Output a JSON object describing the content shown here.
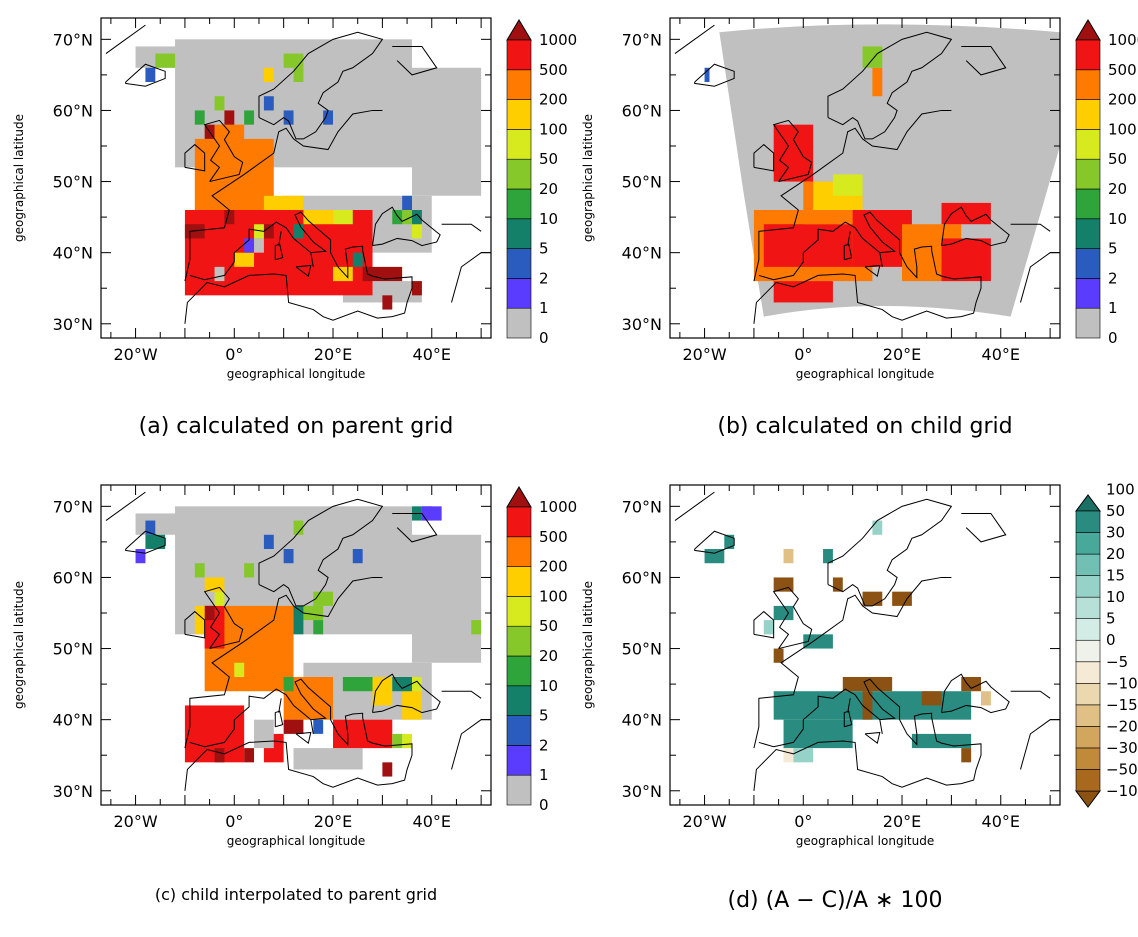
{
  "chart_data": [
    {
      "id": "a",
      "type": "heatmap",
      "caption": "(a) calculated on parent grid",
      "xlabel": "geographical longitude",
      "ylabel": "geographical latitude",
      "x_ticks": [
        "20°W",
        "0°",
        "20°E",
        "40°E"
      ],
      "y_ticks": [
        "30°N",
        "40°N",
        "50°N",
        "60°N",
        "70°N"
      ],
      "xlim": [
        -27,
        52
      ],
      "ylim": [
        28,
        73
      ],
      "colorbar": {
        "labels": [
          "0",
          "1",
          "2",
          "5",
          "10",
          "20",
          "50",
          "100",
          "200",
          "500",
          "1000"
        ],
        "colors": [
          "#c0c0c0",
          "#5a3cff",
          "#2a5cc0",
          "#14806a",
          "#2ea43a",
          "#86c82a",
          "#d7ea1e",
          "#ffce00",
          "#ff7a00",
          "#f01414",
          "#a01010"
        ]
      },
      "cells": [
        [
          "#c0c0c0",
          -12,
          52,
          48,
          18
        ],
        [
          "#c0c0c0",
          -20,
          66,
          10,
          3
        ],
        [
          "#c0c0c0",
          36,
          48,
          14,
          18
        ],
        [
          "#c0c0c0",
          10,
          40,
          30,
          8
        ],
        [
          "#c0c0c0",
          22,
          33,
          16,
          3
        ],
        [
          "#f01414",
          -10,
          34,
          38,
          12
        ],
        [
          "#ff7a00",
          -8,
          46,
          16,
          10
        ],
        [
          "#ff7a00",
          -4,
          52,
          6,
          6
        ],
        [
          "#a01010",
          -6,
          56,
          2,
          2
        ],
        [
          "#a01010",
          -2,
          58,
          2,
          2
        ],
        [
          "#a01010",
          -10,
          42,
          4,
          2
        ],
        [
          "#a01010",
          -2,
          44,
          2,
          2
        ],
        [
          "#a01010",
          4,
          42,
          4,
          2
        ],
        [
          "#a01010",
          26,
          36,
          8,
          2
        ],
        [
          "#a01010",
          36,
          34,
          2,
          2
        ],
        [
          "#a01010",
          30,
          32,
          2,
          2
        ],
        [
          "#a01010",
          0,
          38,
          2,
          2
        ],
        [
          "#a01010",
          14,
          44,
          2,
          2
        ],
        [
          "#ffce00",
          6,
          46,
          8,
          2
        ],
        [
          "#ffce00",
          14,
          44,
          6,
          2
        ],
        [
          "#ffce00",
          0,
          38,
          4,
          2
        ],
        [
          "#ffce00",
          6,
          64,
          2,
          2
        ],
        [
          "#ffce00",
          20,
          36,
          4,
          2
        ],
        [
          "#d7ea1e",
          4,
          42,
          2,
          2
        ],
        [
          "#d7ea1e",
          20,
          44,
          4,
          2
        ],
        [
          "#d7ea1e",
          36,
          42,
          2,
          2
        ],
        [
          "#86c82a",
          -16,
          66,
          4,
          2
        ],
        [
          "#86c82a",
          10,
          66,
          4,
          2
        ],
        [
          "#86c82a",
          -4,
          60,
          2,
          2
        ],
        [
          "#86c82a",
          12,
          64,
          2,
          2
        ],
        [
          "#86c82a",
          34,
          44,
          2,
          2
        ],
        [
          "#2ea43a",
          -8,
          58,
          2,
          2
        ],
        [
          "#2ea43a",
          2,
          58,
          2,
          2
        ],
        [
          "#2ea43a",
          32,
          44,
          2,
          2
        ],
        [
          "#14806a",
          12,
          42,
          2,
          2
        ],
        [
          "#14806a",
          36,
          44,
          2,
          2
        ],
        [
          "#14806a",
          24,
          38,
          2,
          2
        ],
        [
          "#2a5cc0",
          -18,
          64,
          2,
          2
        ],
        [
          "#2a5cc0",
          6,
          60,
          2,
          2
        ],
        [
          "#2a5cc0",
          10,
          58,
          2,
          2
        ],
        [
          "#2a5cc0",
          18,
          58,
          2,
          2
        ],
        [
          "#2a5cc0",
          34,
          46,
          2,
          2
        ],
        [
          "#5a3cff",
          2,
          40,
          2,
          2
        ],
        [
          "#c0c0c0",
          4,
          40,
          2,
          2
        ],
        [
          "#c0c0c0",
          -4,
          36,
          2,
          2
        ]
      ]
    },
    {
      "id": "b",
      "type": "heatmap",
      "caption": "(b) calculated on child grid",
      "xlabel": "geographical longitude",
      "ylabel": "geographical latitude",
      "x_ticks": [
        "20°W",
        "0°",
        "20°E",
        "40°E"
      ],
      "y_ticks": [
        "30°N",
        "40°N",
        "50°N",
        "60°N",
        "70°N"
      ],
      "xlim": [
        -27,
        52
      ],
      "ylim": [
        28,
        73
      ],
      "colorbar": {
        "labels": [
          "0",
          "1",
          "2",
          "5",
          "10",
          "20",
          "50",
          "100",
          "200",
          "500",
          "1000"
        ],
        "colors": [
          "#c0c0c0",
          "#5a3cff",
          "#2a5cc0",
          "#14806a",
          "#2ea43a",
          "#86c82a",
          "#d7ea1e",
          "#ffce00",
          "#ff7a00",
          "#f01414",
          "#a01010"
        ]
      },
      "cells": [
        [
          "#ff7a00",
          -10,
          36,
          24,
          10
        ],
        [
          "#f01414",
          -8,
          38,
          18,
          6
        ],
        [
          "#f01414",
          -6,
          50,
          8,
          8
        ],
        [
          "#ff7a00",
          0,
          44,
          10,
          6
        ],
        [
          "#f01414",
          10,
          38,
          12,
          8
        ],
        [
          "#ff7a00",
          20,
          36,
          12,
          8
        ],
        [
          "#f01414",
          28,
          36,
          10,
          6
        ],
        [
          "#f01414",
          -6,
          33,
          12,
          3
        ],
        [
          "#ffce00",
          2,
          46,
          10,
          4
        ],
        [
          "#d7ea1e",
          6,
          48,
          6,
          3
        ],
        [
          "#ff7a00",
          14,
          62,
          2,
          4
        ],
        [
          "#86c82a",
          12,
          66,
          4,
          3
        ],
        [
          "#2a5cc0",
          -20,
          64,
          1,
          2
        ],
        [
          "#f01414",
          28,
          44,
          10,
          3
        ],
        [
          "#ff7a00",
          22,
          40,
          6,
          3
        ]
      ]
    },
    {
      "id": "c",
      "type": "heatmap",
      "caption": "(c) child interpolated to parent grid",
      "xlabel": "geographical longitude",
      "ylabel": "geographical latitude",
      "x_ticks": [
        "20°W",
        "0°",
        "20°E",
        "40°E"
      ],
      "y_ticks": [
        "30°N",
        "40°N",
        "50°N",
        "60°N",
        "70°N"
      ],
      "xlim": [
        -27,
        52
      ],
      "ylim": [
        28,
        73
      ],
      "colorbar": {
        "labels": [
          "0",
          "1",
          "2",
          "5",
          "10",
          "20",
          "50",
          "100",
          "200",
          "500",
          "1000"
        ],
        "colors": [
          "#c0c0c0",
          "#5a3cff",
          "#2a5cc0",
          "#14806a",
          "#2ea43a",
          "#86c82a",
          "#d7ea1e",
          "#ffce00",
          "#ff7a00",
          "#f01414",
          "#a01010"
        ]
      },
      "cells": [
        [
          "#c0c0c0",
          -12,
          52,
          48,
          18
        ],
        [
          "#c0c0c0",
          -20,
          66,
          10,
          3
        ],
        [
          "#c0c0c0",
          36,
          48,
          14,
          18
        ],
        [
          "#c0c0c0",
          14,
          40,
          26,
          8
        ],
        [
          "#c0c0c0",
          12,
          33,
          14,
          3
        ],
        [
          "#ff7a00",
          -6,
          44,
          18,
          12
        ],
        [
          "#ff7a00",
          10,
          40,
          10,
          6
        ],
        [
          "#f01414",
          -10,
          34,
          12,
          8
        ],
        [
          "#f01414",
          6,
          34,
          4,
          4
        ],
        [
          "#f01414",
          20,
          36,
          12,
          4
        ],
        [
          "#f01414",
          -6,
          50,
          4,
          6
        ],
        [
          "#a01010",
          -4,
          34,
          2,
          2
        ],
        [
          "#a01010",
          2,
          34,
          2,
          2
        ],
        [
          "#a01010",
          30,
          32,
          2,
          2
        ],
        [
          "#a01010",
          -6,
          54,
          2,
          2
        ],
        [
          "#a01010",
          10,
          38,
          4,
          2
        ],
        [
          "#ffce00",
          -8,
          52,
          2,
          4
        ],
        [
          "#ffce00",
          -6,
          58,
          4,
          2
        ],
        [
          "#ffce00",
          28,
          42,
          4,
          4
        ],
        [
          "#ffce00",
          34,
          40,
          4,
          4
        ],
        [
          "#d7ea1e",
          -4,
          56,
          2,
          2
        ],
        [
          "#d7ea1e",
          0,
          46,
          2,
          2
        ],
        [
          "#d7ea1e",
          36,
          44,
          2,
          2
        ],
        [
          "#d7ea1e",
          34,
          36,
          2,
          2
        ],
        [
          "#86c82a",
          -8,
          60,
          2,
          2
        ],
        [
          "#86c82a",
          2,
          60,
          2,
          2
        ],
        [
          "#86c82a",
          12,
          66,
          2,
          2
        ],
        [
          "#86c82a",
          16,
          56,
          4,
          2
        ],
        [
          "#86c82a",
          32,
          36,
          2,
          2
        ],
        [
          "#86c82a",
          48,
          52,
          2,
          2
        ],
        [
          "#86c82a",
          14,
          54,
          4,
          2
        ],
        [
          "#2ea43a",
          22,
          44,
          6,
          2
        ],
        [
          "#2ea43a",
          10,
          44,
          2,
          2
        ],
        [
          "#2ea43a",
          16,
          52,
          2,
          2
        ],
        [
          "#14806a",
          -18,
          64,
          4,
          2
        ],
        [
          "#14806a",
          12,
          52,
          2,
          4
        ],
        [
          "#14806a",
          32,
          44,
          4,
          2
        ],
        [
          "#14806a",
          36,
          68,
          2,
          2
        ],
        [
          "#2a5cc0",
          -18,
          66,
          2,
          2
        ],
        [
          "#2a5cc0",
          6,
          64,
          2,
          2
        ],
        [
          "#2a5cc0",
          10,
          62,
          2,
          2
        ],
        [
          "#2a5cc0",
          24,
          62,
          2,
          2
        ],
        [
          "#2a5cc0",
          16,
          38,
          2,
          2
        ],
        [
          "#2a5cc0",
          38,
          68,
          2,
          2
        ],
        [
          "#5a3cff",
          -20,
          62,
          2,
          2
        ],
        [
          "#5a3cff",
          38,
          68,
          4,
          2
        ],
        [
          "#c0c0c0",
          4,
          36,
          4,
          4
        ]
      ]
    },
    {
      "id": "d",
      "type": "heatmap",
      "caption": "(d) (A − C)/A ∗ 100",
      "xlabel": "geographical longitude",
      "ylabel": "geographical latitude",
      "x_ticks": [
        "20°W",
        "0°",
        "20°E",
        "40°E"
      ],
      "y_ticks": [
        "30°N",
        "40°N",
        "50°N",
        "60°N",
        "70°N"
      ],
      "xlim": [
        -27,
        52
      ],
      "ylim": [
        28,
        73
      ],
      "colorbar": {
        "labels": [
          "-100",
          "-50",
          "-30",
          "-20",
          "-15",
          "-10",
          "-5",
          "0",
          "5",
          "10",
          "15",
          "20",
          "30",
          "50",
          "100"
        ],
        "colors": [
          "#8c5214",
          "#a8681e",
          "#c08a3a",
          "#d2a65c",
          "#e0c084",
          "#ecd8ae",
          "#f4ead6",
          "#eef2ea",
          "#d4ece6",
          "#b6e0d8",
          "#96d2c8",
          "#72c0b4",
          "#48a89a",
          "#2a8c80",
          "#1a7064"
        ]
      },
      "cells": [
        [
          "#2a8c80",
          -20,
          62,
          4,
          2
        ],
        [
          "#2a8c80",
          -16,
          64,
          2,
          2
        ],
        [
          "#8c5214",
          -6,
          58,
          4,
          2
        ],
        [
          "#e0c084",
          -4,
          62,
          2,
          2
        ],
        [
          "#8c5214",
          6,
          58,
          2,
          2
        ],
        [
          "#2a8c80",
          4,
          62,
          2,
          2
        ],
        [
          "#8c5214",
          12,
          56,
          4,
          2
        ],
        [
          "#8c5214",
          18,
          56,
          4,
          2
        ],
        [
          "#2a8c80",
          -6,
          54,
          4,
          2
        ],
        [
          "#96d2c8",
          -8,
          52,
          2,
          2
        ],
        [
          "#8c5214",
          -6,
          48,
          2,
          2
        ],
        [
          "#2a8c80",
          0,
          50,
          6,
          2
        ],
        [
          "#2a8c80",
          -6,
          40,
          40,
          4
        ],
        [
          "#8c5214",
          8,
          44,
          10,
          2
        ],
        [
          "#8c5214",
          24,
          42,
          4,
          2
        ],
        [
          "#8c5214",
          32,
          44,
          4,
          2
        ],
        [
          "#2a8c80",
          -4,
          36,
          14,
          4
        ],
        [
          "#2a8c80",
          22,
          36,
          12,
          2
        ],
        [
          "#96d2c8",
          -2,
          34,
          4,
          2
        ],
        [
          "#f4ead6",
          -4,
          34,
          2,
          2
        ],
        [
          "#8c5214",
          12,
          40,
          2,
          4
        ],
        [
          "#8c5214",
          32,
          34,
          2,
          2
        ],
        [
          "#e0c084",
          36,
          42,
          2,
          2
        ],
        [
          "#96d2c8",
          14,
          66,
          2,
          2
        ]
      ]
    }
  ]
}
